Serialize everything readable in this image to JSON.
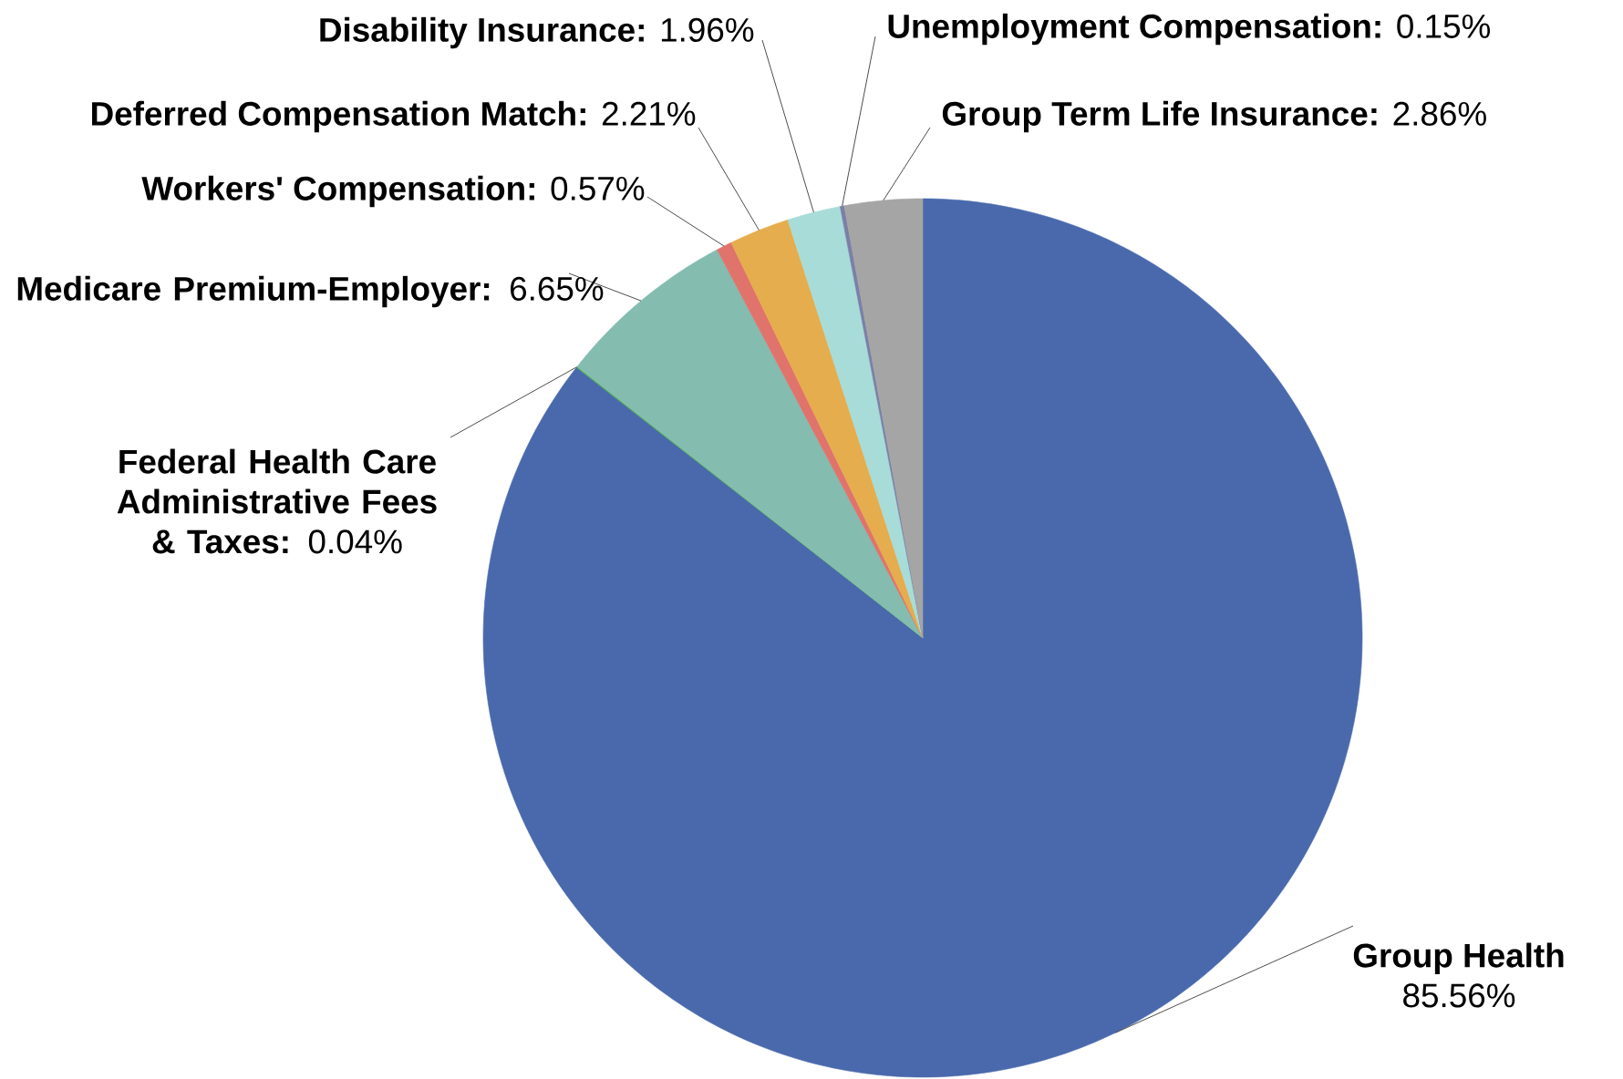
{
  "chart_data": {
    "type": "pie",
    "categories": [
      "Group Health",
      "Federal Health Care Administrative Fees & Taxes",
      "Medicare Premium-Employer",
      "Workers' Compensation",
      "Deferred Compensation Match",
      "Disability Insurance",
      "Unemployment Compensation",
      "Group Term Life Insurance"
    ],
    "values": [
      85.56,
      0.04,
      6.65,
      0.57,
      2.21,
      1.96,
      0.15,
      2.86
    ],
    "value_labels": [
      "85.56%",
      "**:** 0.04%",
      "**:** 6.65%",
      "**:** 0.57%",
      "**:** 2.21%",
      "**:** 1.96%",
      "**:** 0.15%",
      "**:** 2.86%"
    ],
    "colors": [
      "#4a69ac",
      "#4caf50",
      "#84bcb0",
      "#e0736b",
      "#e5ad4d",
      "#a8dcd8",
      "#7b7fa8",
      "#a5a5a5"
    ]
  }
}
